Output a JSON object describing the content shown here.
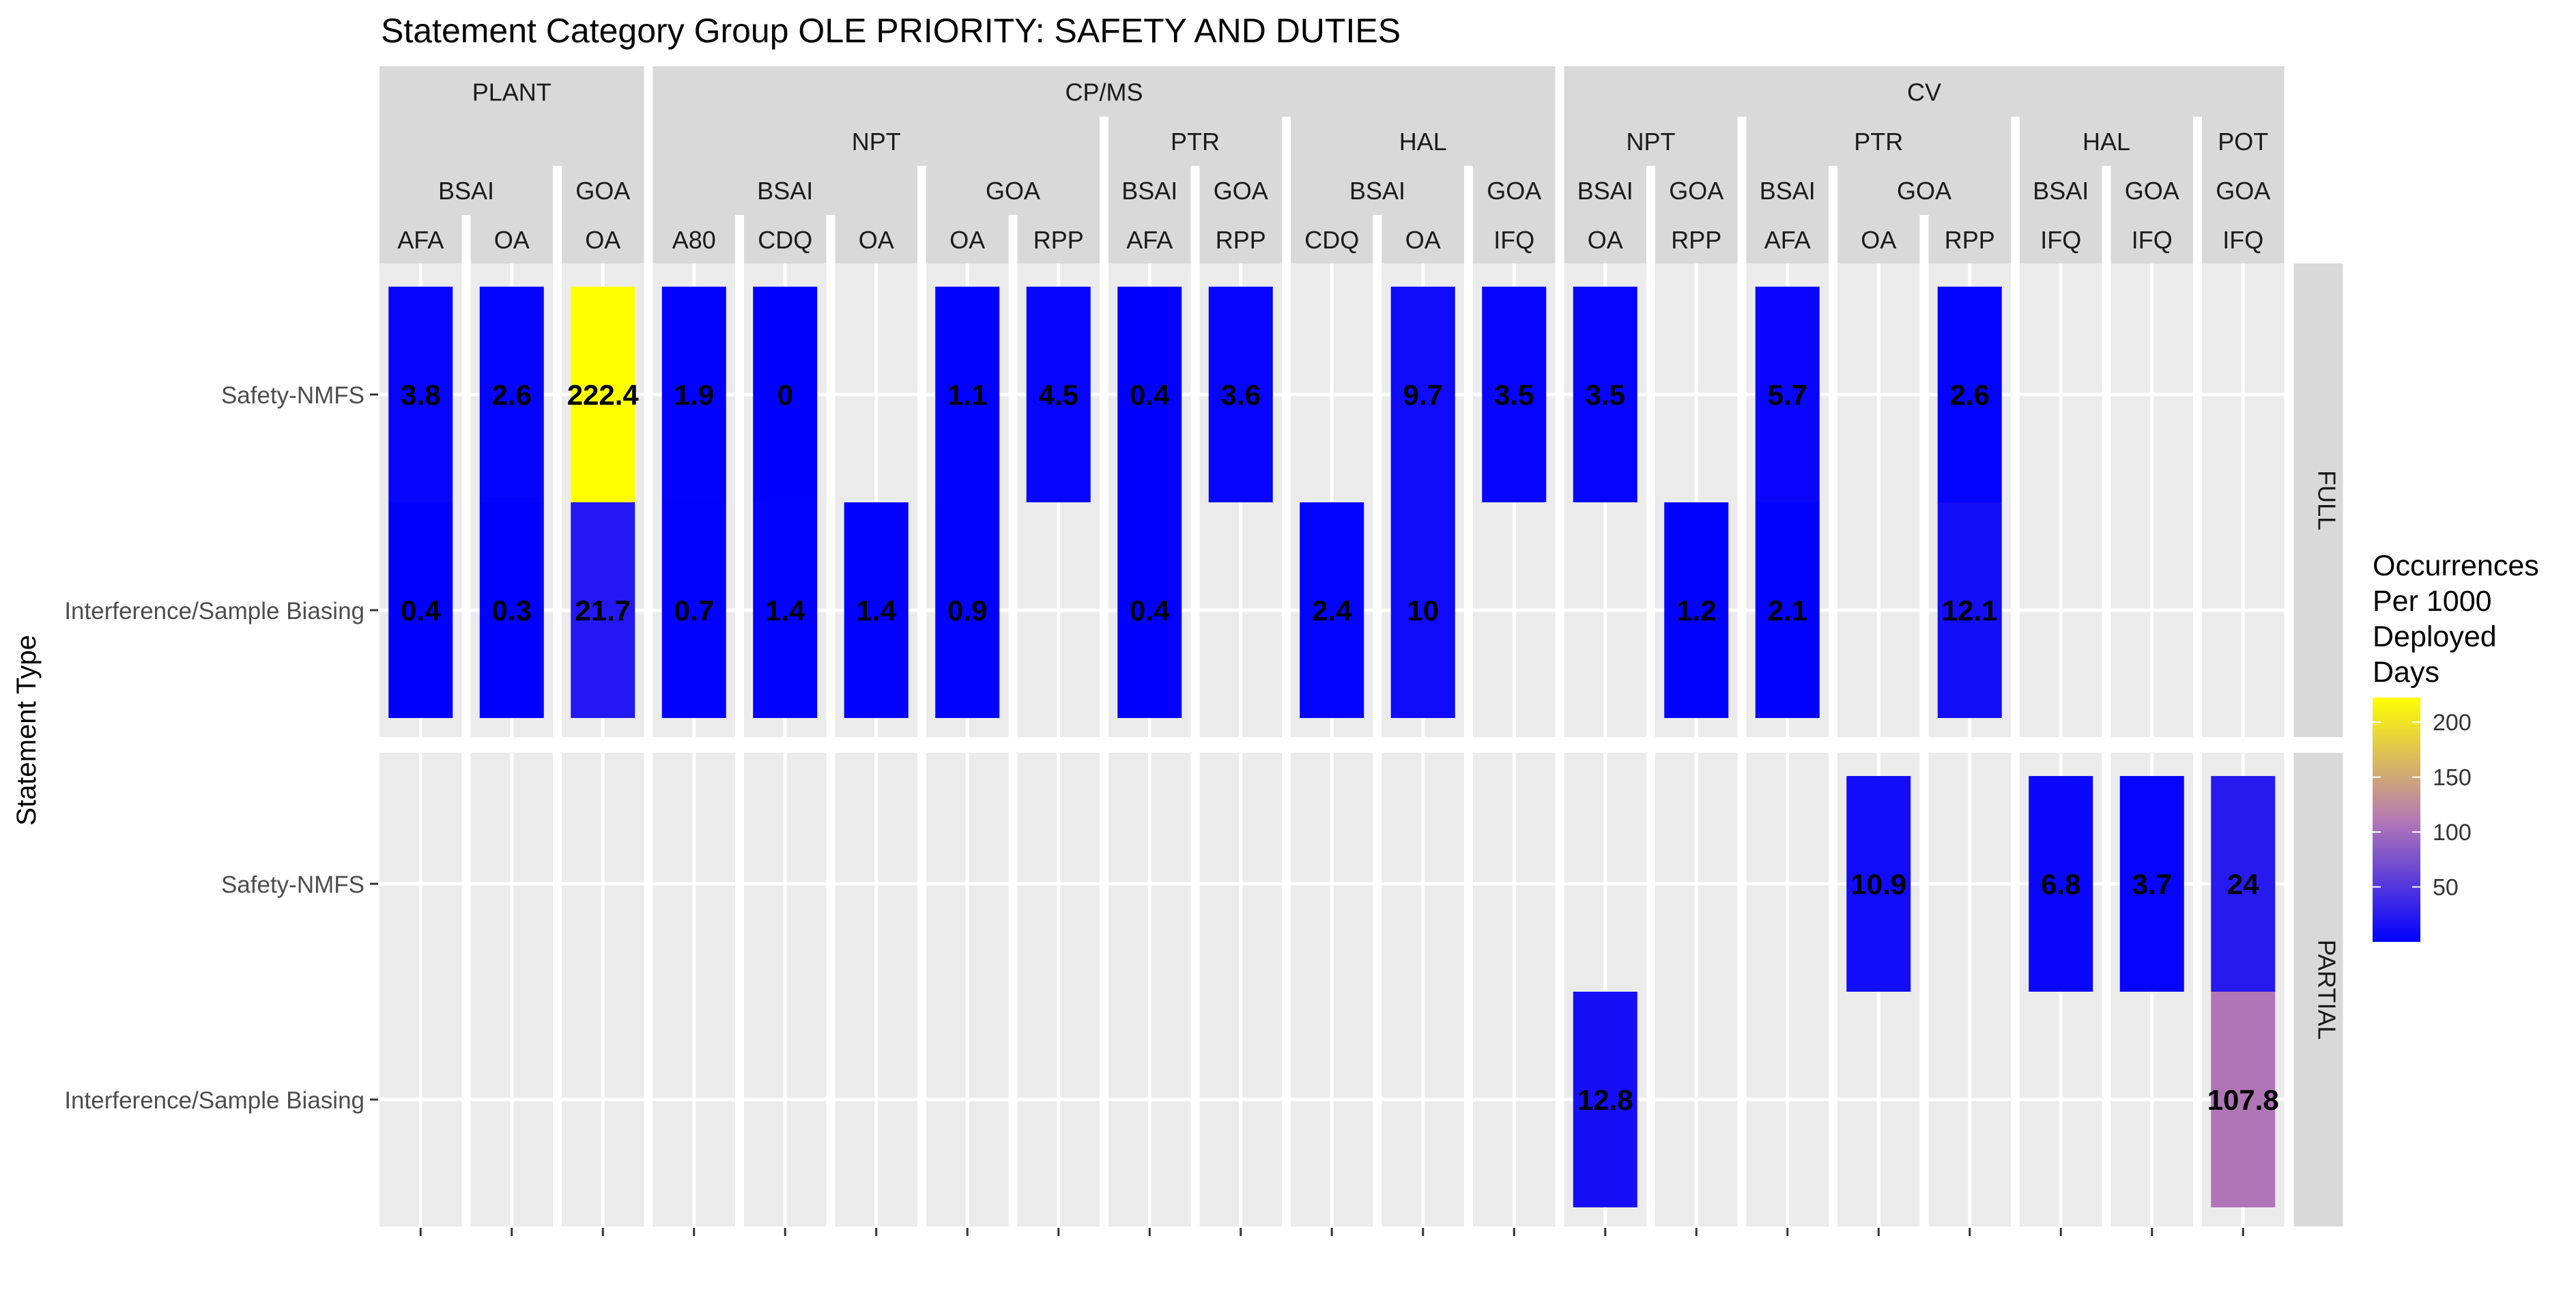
{
  "chart_data": {
    "type": "heatmap",
    "title": "Statement Category Group OLE PRIORITY: SAFETY AND DUTIES",
    "ylabel": "Statement Type",
    "xlabel": "",
    "row_categories": [
      "Safety-NMFS",
      "Interference/Sample Biasing"
    ],
    "row_facets": [
      "FULL",
      "PARTIAL"
    ],
    "legend": {
      "title": [
        "Occurrences",
        "Per 1000",
        "Deployed",
        "Days"
      ],
      "ticks": [
        50,
        100,
        150,
        200
      ],
      "range": [
        0,
        222.4
      ],
      "colors": [
        "#0000ff",
        "#ffff00"
      ],
      "placement": "right"
    },
    "strip_levels": {
      "level1": [
        {
          "label": "PLANT",
          "span": 3
        },
        {
          "label": "CP/MS",
          "span": 10
        },
        {
          "label": "CV",
          "span": 8
        }
      ],
      "level2": [
        {
          "label": "",
          "span": 3
        },
        {
          "label": "NPT",
          "span": 5
        },
        {
          "label": "PTR",
          "span": 2
        },
        {
          "label": "HAL",
          "span": 3
        },
        {
          "label": "NPT",
          "span": 2
        },
        {
          "label": "PTR",
          "span": 3
        },
        {
          "label": "HAL",
          "span": 2
        },
        {
          "label": "POT",
          "span": 1
        }
      ],
      "level3": [
        {
          "label": "BSAI",
          "span": 2
        },
        {
          "label": "GOA",
          "span": 1
        },
        {
          "label": "BSAI",
          "span": 3
        },
        {
          "label": "GOA",
          "span": 2
        },
        {
          "label": "BSAI",
          "span": 1
        },
        {
          "label": "GOA",
          "span": 1
        },
        {
          "label": "BSAI",
          "span": 2
        },
        {
          "label": "GOA",
          "span": 1
        },
        {
          "label": "BSAI",
          "span": 1
        },
        {
          "label": "GOA",
          "span": 1
        },
        {
          "label": "BSAI",
          "span": 1
        },
        {
          "label": "GOA",
          "span": 2
        },
        {
          "label": "BSAI",
          "span": 1
        },
        {
          "label": "GOA",
          "span": 1
        },
        {
          "label": "GOA",
          "span": 1
        }
      ],
      "level4": [
        "AFA",
        "OA",
        "OA",
        "A80",
        "CDQ",
        "OA",
        "OA",
        "RPP",
        "AFA",
        "RPP",
        "CDQ",
        "OA",
        "IFQ",
        "OA",
        "RPP",
        "AFA",
        "OA",
        "RPP",
        "IFQ",
        "IFQ",
        "IFQ"
      ]
    },
    "cells": [
      {
        "col": 0,
        "facet": "FULL",
        "row": "Safety-NMFS",
        "value": 3.8,
        "label": "3.8"
      },
      {
        "col": 0,
        "facet": "FULL",
        "row": "Interference/Sample Biasing",
        "value": 0.4,
        "label": "0.4"
      },
      {
        "col": 1,
        "facet": "FULL",
        "row": "Safety-NMFS",
        "value": 2.6,
        "label": "2.6"
      },
      {
        "col": 1,
        "facet": "FULL",
        "row": "Interference/Sample Biasing",
        "value": 0.3,
        "label": "0.3"
      },
      {
        "col": 2,
        "facet": "FULL",
        "row": "Safety-NMFS",
        "value": 222.4,
        "label": "222.4"
      },
      {
        "col": 2,
        "facet": "FULL",
        "row": "Interference/Sample Biasing",
        "value": 21.7,
        "label": "21.7"
      },
      {
        "col": 3,
        "facet": "FULL",
        "row": "Safety-NMFS",
        "value": 1.9,
        "label": "1.9"
      },
      {
        "col": 3,
        "facet": "FULL",
        "row": "Interference/Sample Biasing",
        "value": 0.7,
        "label": "0.7"
      },
      {
        "col": 4,
        "facet": "FULL",
        "row": "Safety-NMFS",
        "value": 0,
        "label": "0"
      },
      {
        "col": 4,
        "facet": "FULL",
        "row": "Interference/Sample Biasing",
        "value": 1.4,
        "label": "1.4"
      },
      {
        "col": 5,
        "facet": "FULL",
        "row": "Interference/Sample Biasing",
        "value": 1.4,
        "label": "1.4"
      },
      {
        "col": 6,
        "facet": "FULL",
        "row": "Safety-NMFS",
        "value": 1.1,
        "label": "1.1"
      },
      {
        "col": 6,
        "facet": "FULL",
        "row": "Interference/Sample Biasing",
        "value": 0.9,
        "label": "0.9"
      },
      {
        "col": 7,
        "facet": "FULL",
        "row": "Safety-NMFS",
        "value": 4.5,
        "label": "4.5"
      },
      {
        "col": 8,
        "facet": "FULL",
        "row": "Safety-NMFS",
        "value": 0.4,
        "label": "0.4"
      },
      {
        "col": 8,
        "facet": "FULL",
        "row": "Interference/Sample Biasing",
        "value": 0.4,
        "label": "0.4"
      },
      {
        "col": 9,
        "facet": "FULL",
        "row": "Safety-NMFS",
        "value": 3.6,
        "label": "3.6"
      },
      {
        "col": 10,
        "facet": "FULL",
        "row": "Interference/Sample Biasing",
        "value": 2.4,
        "label": "2.4"
      },
      {
        "col": 11,
        "facet": "FULL",
        "row": "Safety-NMFS",
        "value": 9.7,
        "label": "9.7"
      },
      {
        "col": 11,
        "facet": "FULL",
        "row": "Interference/Sample Biasing",
        "value": 10,
        "label": "10"
      },
      {
        "col": 12,
        "facet": "FULL",
        "row": "Safety-NMFS",
        "value": 3.5,
        "label": "3.5"
      },
      {
        "col": 13,
        "facet": "FULL",
        "row": "Safety-NMFS",
        "value": 3.5,
        "label": "3.5"
      },
      {
        "col": 14,
        "facet": "FULL",
        "row": "Interference/Sample Biasing",
        "value": 1.2,
        "label": "1.2"
      },
      {
        "col": 15,
        "facet": "FULL",
        "row": "Safety-NMFS",
        "value": 5.7,
        "label": "5.7"
      },
      {
        "col": 15,
        "facet": "FULL",
        "row": "Interference/Sample Biasing",
        "value": 2.1,
        "label": "2.1"
      },
      {
        "col": 17,
        "facet": "FULL",
        "row": "Safety-NMFS",
        "value": 2.6,
        "label": "2.6"
      },
      {
        "col": 17,
        "facet": "FULL",
        "row": "Interference/Sample Biasing",
        "value": 12.1,
        "label": "12.1"
      },
      {
        "col": 16,
        "facet": "PARTIAL",
        "row": "Safety-NMFS",
        "value": 10.9,
        "label": "10.9"
      },
      {
        "col": 18,
        "facet": "PARTIAL",
        "row": "Safety-NMFS",
        "value": 6.8,
        "label": "6.8"
      },
      {
        "col": 19,
        "facet": "PARTIAL",
        "row": "Safety-NMFS",
        "value": 3.7,
        "label": "3.7"
      },
      {
        "col": 20,
        "facet": "PARTIAL",
        "row": "Safety-NMFS",
        "value": 24,
        "label": "24"
      },
      {
        "col": 13,
        "facet": "PARTIAL",
        "row": "Interference/Sample Biasing",
        "value": 12.8,
        "label": "12.8"
      },
      {
        "col": 20,
        "facet": "PARTIAL",
        "row": "Interference/Sample Biasing",
        "value": 107.8,
        "label": "107.8"
      }
    ]
  }
}
